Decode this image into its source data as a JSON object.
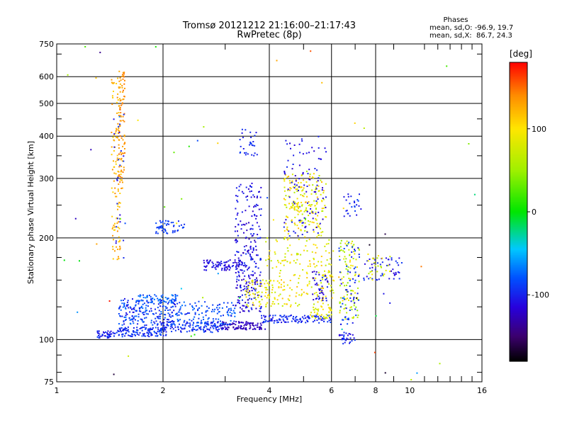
{
  "chart_data": {
    "type": "scatter",
    "title": "Tromsø 20121212 21:16:00–21:17:43",
    "subtitle": "RwPretec (8p)",
    "info": {
      "header": "Phases",
      "line1": "mean, sd,O: -96.9, 19.7",
      "line2": "mean, sd,X:  86.7, 24.3"
    },
    "xlabel": "Frequency [MHz]",
    "ylabel": "Stationary phase Virtual Height [km]",
    "xscale": "log",
    "yscale": "log",
    "xlim": [
      1,
      16
    ],
    "ylim": [
      75,
      750
    ],
    "grid": true,
    "x_ticks": [
      {
        "value": 1,
        "label": "1",
        "major": true
      },
      {
        "value": 2,
        "label": "2",
        "major": true
      },
      {
        "value": 4,
        "label": "4",
        "major": true
      },
      {
        "value": 6,
        "label": "6",
        "major": true
      },
      {
        "value": 8,
        "label": "8",
        "major": true
      },
      {
        "value": 10,
        "label": "10",
        "major": false
      },
      {
        "value": 16,
        "label": "16",
        "major": false
      }
    ],
    "y_ticks": [
      {
        "value": 75,
        "label": "75",
        "major": false
      },
      {
        "value": 100,
        "label": "100",
        "major": true
      },
      {
        "value": 200,
        "label": "200",
        "major": true
      },
      {
        "value": 300,
        "label": "300",
        "major": true
      },
      {
        "value": 400,
        "label": "400",
        "major": true
      },
      {
        "value": 500,
        "label": "500",
        "major": true
      },
      {
        "value": 600,
        "label": "600",
        "major": true
      },
      {
        "value": 750,
        "label": "750",
        "major": false
      }
    ],
    "colorbar": {
      "label": "[deg]",
      "range": [
        -180,
        180
      ],
      "ticks": [
        {
          "value": 100,
          "label": "100"
        },
        {
          "value": 0,
          "label": "0"
        },
        {
          "value": -100,
          "label": "-100"
        }
      ]
    },
    "clusters": [
      {
        "n": 40,
        "x": [
          1.3,
          1.45
        ],
        "y": [
          101,
          106
        ],
        "phase": [
          -115,
          -85
        ]
      },
      {
        "n": 140,
        "x": [
          1.45,
          2.05
        ],
        "y": [
          102,
          109
        ],
        "phase": [
          -105,
          -80
        ]
      },
      {
        "n": 120,
        "x": [
          2.0,
          3.0
        ],
        "y": [
          105,
          113
        ],
        "phase": [
          -110,
          -80
        ]
      },
      {
        "n": 100,
        "x": [
          2.9,
          3.9
        ],
        "y": [
          107,
          113
        ],
        "phase": [
          -135,
          -115
        ]
      },
      {
        "n": 120,
        "x": [
          3.8,
          6.0
        ],
        "y": [
          112,
          118
        ],
        "phase": [
          -110,
          -85
        ]
      },
      {
        "n": 220,
        "x": [
          1.5,
          2.2
        ],
        "y": [
          110,
          132
        ],
        "phase": [
          -110,
          -70
        ]
      },
      {
        "n": 120,
        "x": [
          2.2,
          3.2
        ],
        "y": [
          110,
          130
        ],
        "phase": [
          -100,
          -70
        ]
      },
      {
        "n": 60,
        "x": [
          1.7,
          2.2
        ],
        "y": [
          128,
          136
        ],
        "phase": [
          -95,
          -60
        ]
      },
      {
        "n": 50,
        "x": [
          1.9,
          2.3
        ],
        "y": [
          205,
          225
        ],
        "phase": [
          -100,
          -80
        ]
      },
      {
        "n": 90,
        "x": [
          2.6,
          3.4
        ],
        "y": [
          160,
          172
        ],
        "phase": [
          -125,
          -95
        ]
      },
      {
        "n": 180,
        "x": [
          3.2,
          3.8
        ],
        "y": [
          120,
          200
        ],
        "phase": [
          -130,
          -90
        ]
      },
      {
        "n": 80,
        "x": [
          3.2,
          3.8
        ],
        "y": [
          200,
          290
        ],
        "phase": [
          -125,
          -95
        ]
      },
      {
        "n": 30,
        "x": [
          3.3,
          3.7
        ],
        "y": [
          350,
          420
        ],
        "phase": [
          -110,
          -85
        ]
      },
      {
        "n": 60,
        "x": [
          3.4,
          4.1
        ],
        "y": [
          125,
          150
        ],
        "phase": [
          70,
          110
        ]
      },
      {
        "n": 200,
        "x": [
          3.9,
          6.1
        ],
        "y": [
          125,
          200
        ],
        "phase": [
          60,
          120
        ]
      },
      {
        "n": 180,
        "x": [
          4.4,
          5.8
        ],
        "y": [
          200,
          310
        ],
        "phase": [
          55,
          125
        ]
      },
      {
        "n": 100,
        "x": [
          4.4,
          5.8
        ],
        "y": [
          200,
          400
        ],
        "phase": [
          -125,
          -95
        ]
      },
      {
        "n": 25,
        "x": [
          4.5,
          5.0
        ],
        "y": [
          240,
          255
        ],
        "phase": [
          60,
          110
        ]
      },
      {
        "n": 40,
        "x": [
          5.3,
          5.9
        ],
        "y": [
          130,
          160
        ],
        "phase": [
          -130,
          -95
        ]
      },
      {
        "n": 40,
        "x": [
          5.2,
          6.0
        ],
        "y": [
          115,
          125
        ],
        "phase": [
          70,
          110
        ]
      },
      {
        "n": 100,
        "x": [
          6.3,
          7.2
        ],
        "y": [
          115,
          200
        ],
        "phase": [
          40,
          110
        ]
      },
      {
        "n": 60,
        "x": [
          6.3,
          7.2
        ],
        "y": [
          110,
          200
        ],
        "phase": [
          -110,
          -80
        ]
      },
      {
        "n": 25,
        "x": [
          6.5,
          7.3
        ],
        "y": [
          230,
          270
        ],
        "phase": [
          -110,
          -80
        ]
      },
      {
        "n": 30,
        "x": [
          6.3,
          7.0
        ],
        "y": [
          97,
          105
        ],
        "phase": [
          -120,
          -90
        ]
      },
      {
        "n": 50,
        "x": [
          7.4,
          9.5
        ],
        "y": [
          150,
          175
        ],
        "phase": [
          -120,
          -90
        ]
      },
      {
        "n": 25,
        "x": [
          7.6,
          8.8
        ],
        "y": [
          150,
          180
        ],
        "phase": [
          50,
          100
        ]
      },
      {
        "n": 120,
        "x": [
          1.43,
          1.52
        ],
        "y": [
          170,
          600
        ],
        "phase": [
          105,
          140
        ]
      },
      {
        "n": 80,
        "x": [
          1.5,
          1.56
        ],
        "y": [
          280,
          640
        ],
        "phase": [
          125,
          150
        ]
      },
      {
        "n": 25,
        "x": [
          1.45,
          1.55
        ],
        "y": [
          170,
          480
        ],
        "phase": [
          -115,
          -85
        ]
      },
      {
        "n": 60,
        "x": [
          1.0,
          16.0
        ],
        "y": [
          76,
          740
        ],
        "phase": [
          -180,
          180
        ]
      }
    ]
  }
}
